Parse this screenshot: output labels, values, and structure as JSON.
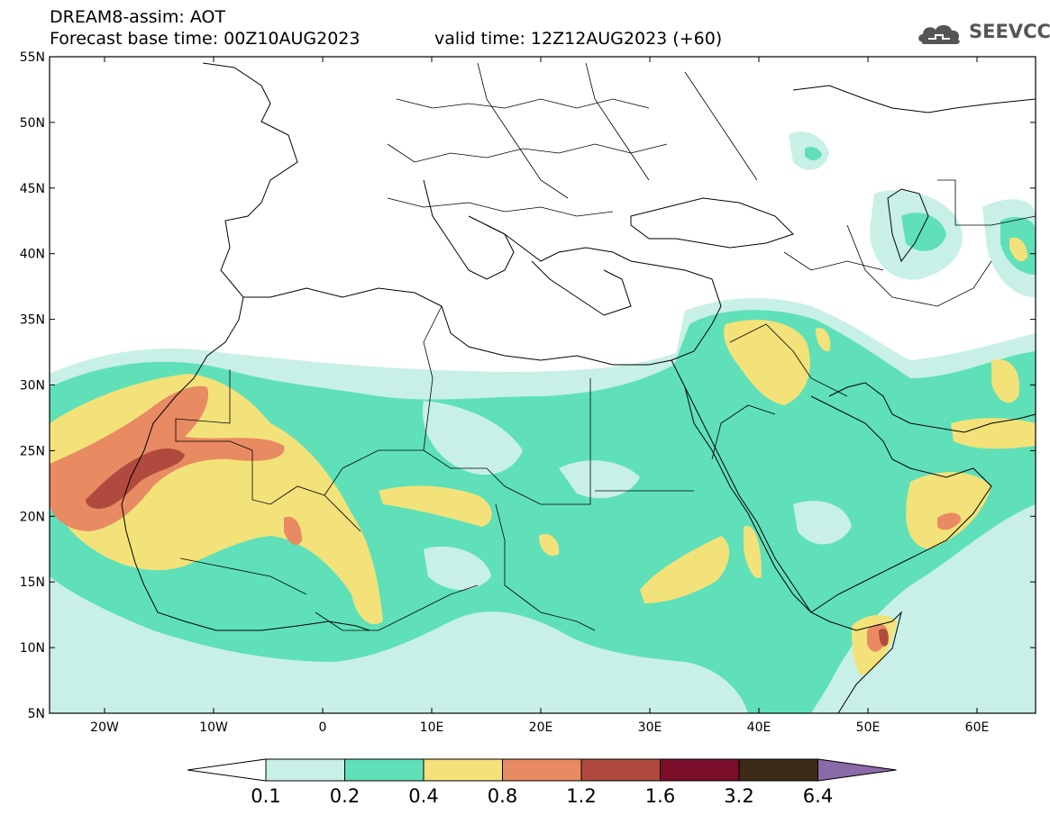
{
  "header": {
    "title": "DREAM8-assim: AOT",
    "base_time": "Forecast base time: 00Z10AUG2023",
    "valid_time": "valid time: 12Z12AUG2023 (+60)",
    "logo_text": "SEEVCCC"
  },
  "map": {
    "lat_labels": [
      "55N",
      "50N",
      "45N",
      "40N",
      "35N",
      "30N",
      "25N",
      "20N",
      "15N",
      "10N",
      "5N"
    ],
    "lon_labels": [
      "20W",
      "10W",
      "0",
      "10E",
      "20E",
      "30E",
      "40E",
      "50E",
      "60E"
    ]
  },
  "colorbar": {
    "labels": [
      "0.1",
      "0.2",
      "0.4",
      "0.8",
      "1.2",
      "1.6",
      "3.2",
      "6.4"
    ],
    "colors": [
      "#c8f0e6",
      "#5fe0b8",
      "#f3e27a",
      "#e88a62",
      "#b04a3e",
      "#7a0d2a",
      "#3e2a18",
      "#8a6aa8"
    ]
  }
}
